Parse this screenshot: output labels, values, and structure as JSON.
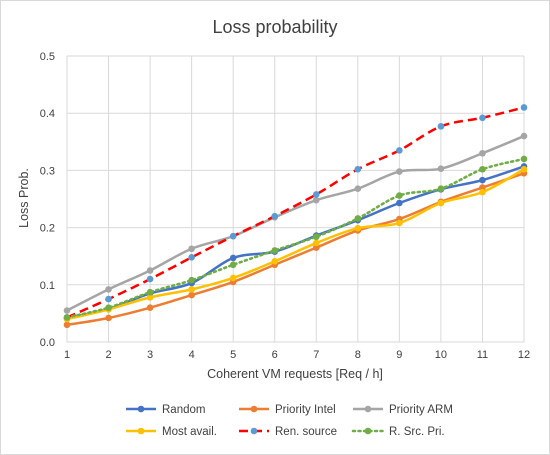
{
  "chart_data": {
    "type": "line",
    "title": "Loss probability",
    "xlabel": "Coherent VM requests [Req / h]",
    "ylabel": "Loss Prob.",
    "x": [
      1,
      2,
      3,
      4,
      5,
      6,
      7,
      8,
      9,
      10,
      11,
      12
    ],
    "xlim": [
      1,
      12
    ],
    "ylim": [
      0,
      0.5
    ],
    "yticks": [
      "0.0",
      "0.1",
      "0.2",
      "0.3",
      "0.4",
      "0.5"
    ],
    "xticks": [
      "1",
      "2",
      "3",
      "4",
      "5",
      "6",
      "7",
      "8",
      "9",
      "10",
      "11",
      "12"
    ],
    "grid": true,
    "legend_position": "bottom",
    "series": [
      {
        "name": "Random",
        "color": "#4472c4",
        "style": "solid",
        "values": [
          0.042,
          0.058,
          0.085,
          0.103,
          0.147,
          0.158,
          0.186,
          0.213,
          0.243,
          0.267,
          0.283,
          0.307
        ]
      },
      {
        "name": "Priority Intel",
        "color": "#ed7d31",
        "style": "solid",
        "values": [
          0.03,
          0.042,
          0.06,
          0.082,
          0.105,
          0.135,
          0.165,
          0.195,
          0.215,
          0.245,
          0.27,
          0.295
        ]
      },
      {
        "name": "Priority ARM",
        "color": "#a5a5a5",
        "style": "solid",
        "values": [
          0.055,
          0.092,
          0.125,
          0.163,
          0.185,
          0.218,
          0.248,
          0.268,
          0.298,
          0.303,
          0.33,
          0.36
        ]
      },
      {
        "name": "Most avail.",
        "color": "#ffc000",
        "style": "solid",
        "values": [
          0.04,
          0.057,
          0.078,
          0.092,
          0.112,
          0.141,
          0.173,
          0.199,
          0.208,
          0.243,
          0.262,
          0.302
        ]
      },
      {
        "name": "Ren. source",
        "color": "#ff0000",
        "style": "dashed",
        "marker_color": "#5b9bd5",
        "values": [
          0.043,
          0.075,
          0.11,
          0.148,
          0.185,
          0.22,
          0.258,
          0.302,
          0.335,
          0.377,
          0.392,
          0.41
        ]
      },
      {
        "name": "R. Src. Pri.",
        "color": "#70ad47",
        "style": "dotted",
        "values": [
          0.043,
          0.06,
          0.087,
          0.108,
          0.135,
          0.16,
          0.184,
          0.216,
          0.256,
          0.268,
          0.302,
          0.32
        ]
      }
    ]
  }
}
